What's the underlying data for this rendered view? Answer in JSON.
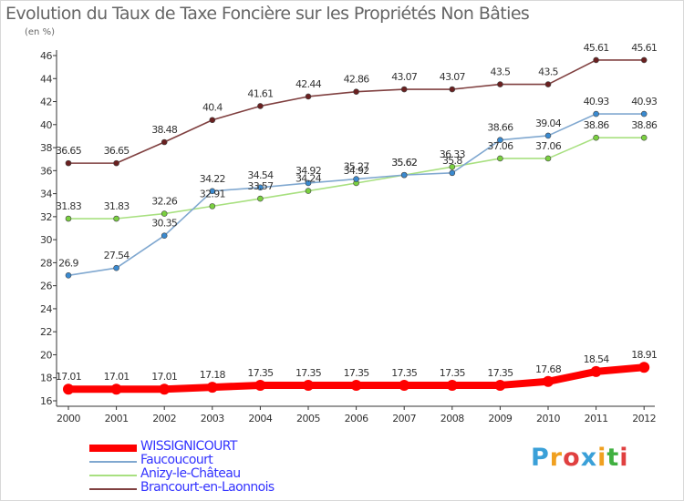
{
  "title": "Evolution du Taux de Taxe Foncière sur les Propriétés Non Bâties",
  "unit_label": "(en %)",
  "logo": {
    "text": "Proxiti",
    "letters": [
      "P",
      "r",
      "o",
      "x",
      "i",
      "t",
      "i"
    ],
    "colors": [
      "#3aa0d8",
      "#f0a020",
      "#e04040",
      "#3aa0d8",
      "#f0a020",
      "#40b040",
      "#e04040"
    ]
  },
  "chart_data": {
    "type": "line",
    "title": "Evolution du Taux de Taxe Foncière sur les Propriétés Non Bâties",
    "ylabel": "(en %)",
    "xlabel": "",
    "categories": [
      "2000",
      "2001",
      "2002",
      "2003",
      "2004",
      "2005",
      "2006",
      "2007",
      "2008",
      "2009",
      "2010",
      "2011",
      "2012"
    ],
    "ylim": [
      16,
      46
    ],
    "yticks": [
      16,
      18,
      20,
      22,
      24,
      26,
      28,
      30,
      32,
      34,
      36,
      38,
      40,
      42,
      44,
      46
    ],
    "grid": false,
    "legend": "bottom-left",
    "series": [
      {
        "name": "WISSIGNICOURT",
        "color": "#ff0000",
        "marker_color": "#ff0000",
        "text_color": "#3333ff",
        "values": [
          17.01,
          17.01,
          17.01,
          17.18,
          17.35,
          17.35,
          17.35,
          17.35,
          17.35,
          17.35,
          17.68,
          18.54,
          18.91
        ],
        "labels": [
          "17.01",
          "17.01",
          "17.01",
          "17.18",
          "17.35",
          "17.35",
          "17.35",
          "17.35",
          "17.35",
          "17.35",
          "17.68",
          "18.54",
          "18.91"
        ]
      },
      {
        "name": "Faucoucourt",
        "color": "#80a8d0",
        "marker_color": "#3a8ad0",
        "text_color": "#3333ff",
        "values": [
          26.9,
          27.54,
          30.35,
          34.22,
          34.54,
          34.92,
          35.27,
          35.62,
          35.8,
          38.66,
          39.04,
          40.93,
          40.93
        ],
        "labels": [
          "26.9",
          "27.54",
          "30.35",
          "34.22",
          "34.54",
          "34.92",
          "35.27",
          "35.62",
          "35.8",
          "38.66",
          "39.04",
          "40.93",
          "40.93"
        ]
      },
      {
        "name": "Anizy-le-Château",
        "color": "#a8e080",
        "marker_color": "#7ad040",
        "text_color": "#3333ff",
        "values": [
          31.83,
          31.83,
          32.26,
          32.91,
          33.57,
          34.24,
          34.92,
          35.62,
          36.33,
          37.06,
          37.06,
          38.86,
          38.86
        ],
        "labels": [
          "31.83",
          "31.83",
          "32.26",
          "32.91",
          "33.57",
          "34.24",
          "34.92",
          "35.62",
          "36.33",
          "37.06",
          "37.06",
          "38.86",
          "38.86"
        ]
      },
      {
        "name": "Brancourt-en-Laonnois",
        "color": "#804040",
        "marker_color": "#6a2020",
        "text_color": "#3333ff",
        "values": [
          36.65,
          36.65,
          38.48,
          40.4,
          41.61,
          42.44,
          42.86,
          43.07,
          43.07,
          43.5,
          43.5,
          45.61,
          45.61
        ],
        "labels": [
          "36.65",
          "36.65",
          "38.48",
          "40.4",
          "41.61",
          "42.44",
          "42.86",
          "43.07",
          "43.07",
          "43.5",
          "43.5",
          "45.61",
          "45.61"
        ]
      }
    ]
  }
}
